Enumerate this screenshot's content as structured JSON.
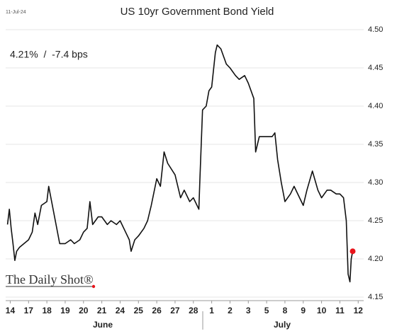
{
  "chart_data": {
    "type": "line",
    "title": "US 10yr Government Bond Yield",
    "date_label": "11-Jul-24",
    "annotation": "4.21%  /  -7.4 bps",
    "brand": "The Daily Shot®",
    "months": [
      "June",
      "July"
    ],
    "grid": true,
    "xlim": [
      -0.25,
      19.3
    ],
    "ylim": [
      4.15,
      4.5
    ],
    "yticks": [
      4.15,
      {
        "value": 4.2,
        "label": "4.20"
      },
      4.25,
      {
        "value": 4.3,
        "label": "4.30"
      },
      4.35,
      {
        "value": 4.4,
        "label": "4.40"
      },
      4.45,
      {
        "value": 4.5,
        "label": "4.50"
      }
    ],
    "xticks": [
      {
        "value": 0,
        "label": "14"
      },
      {
        "value": 1,
        "label": "17"
      },
      {
        "value": 2,
        "label": "18"
      },
      {
        "value": 3,
        "label": "19"
      },
      {
        "value": 4,
        "label": "20"
      },
      {
        "value": 5,
        "label": "21"
      },
      {
        "value": 6,
        "label": "24"
      },
      {
        "value": 7,
        "label": "25"
      },
      {
        "value": 8,
        "label": "26"
      },
      {
        "value": 9,
        "label": "27"
      },
      {
        "value": 10,
        "label": "28"
      },
      {
        "value": 11,
        "label": "1"
      },
      {
        "value": 12,
        "label": "2"
      },
      {
        "value": 13,
        "label": "3"
      },
      {
        "value": 14,
        "label": "5"
      },
      {
        "value": 15,
        "label": "8"
      },
      {
        "value": 16,
        "label": "9"
      },
      {
        "value": 17,
        "label": "10"
      },
      {
        "value": 18,
        "label": "11"
      },
      {
        "value": 19,
        "label": "12"
      }
    ],
    "series": [
      {
        "name": "US 10yr yield",
        "color": "#111111",
        "marker_color": "#e8141b",
        "x": [
          -0.15,
          -0.05,
          0.05,
          0.15,
          0.25,
          0.35,
          0.5,
          0.75,
          1,
          1.2,
          1.35,
          1.5,
          1.7,
          2,
          2.1,
          2.3,
          2.5,
          2.7,
          3,
          3.3,
          3.5,
          3.8,
          4,
          4.2,
          4.35,
          4.5,
          4.8,
          5,
          5.3,
          5.5,
          5.8,
          6,
          6.3,
          6.5,
          6.6,
          6.8,
          7,
          7.3,
          7.5,
          7.7,
          8,
          8.2,
          8.4,
          8.6,
          9,
          9.3,
          9.5,
          9.8,
          10,
          10.3,
          10.35,
          10.5,
          10.7,
          10.85,
          11,
          11.2,
          11.3,
          11.5,
          11.8,
          12,
          12.3,
          12.5,
          12.8,
          13,
          13.3,
          13.4,
          13.6,
          14,
          14.3,
          14.45,
          14.6,
          14.8,
          15,
          15.3,
          15.5,
          15.8,
          16,
          16.2,
          16.5,
          16.8,
          17,
          17.3,
          17.5,
          17.8,
          18,
          18.2,
          18.35,
          18.45,
          18.55,
          18.62,
          18.7
        ],
        "values": [
          4.245,
          4.265,
          4.24,
          4.22,
          4.198,
          4.21,
          4.215,
          4.22,
          4.225,
          4.235,
          4.26,
          4.245,
          4.27,
          4.275,
          4.295,
          4.27,
          4.245,
          4.22,
          4.22,
          4.225,
          4.22,
          4.225,
          4.235,
          4.24,
          4.275,
          4.245,
          4.255,
          4.255,
          4.245,
          4.25,
          4.245,
          4.25,
          4.235,
          4.225,
          4.21,
          4.225,
          4.23,
          4.24,
          4.25,
          4.27,
          4.305,
          4.295,
          4.34,
          4.325,
          4.31,
          4.28,
          4.29,
          4.275,
          4.28,
          4.265,
          4.3,
          4.395,
          4.4,
          4.42,
          4.425,
          4.47,
          4.48,
          4.475,
          4.455,
          4.45,
          4.44,
          4.435,
          4.44,
          4.43,
          4.41,
          4.34,
          4.36,
          4.36,
          4.36,
          4.365,
          4.33,
          4.3,
          4.275,
          4.285,
          4.295,
          4.28,
          4.27,
          4.29,
          4.315,
          4.29,
          4.28,
          4.29,
          4.29,
          4.285,
          4.285,
          4.28,
          4.25,
          4.18,
          4.17,
          4.2,
          4.21
        ]
      }
    ]
  }
}
